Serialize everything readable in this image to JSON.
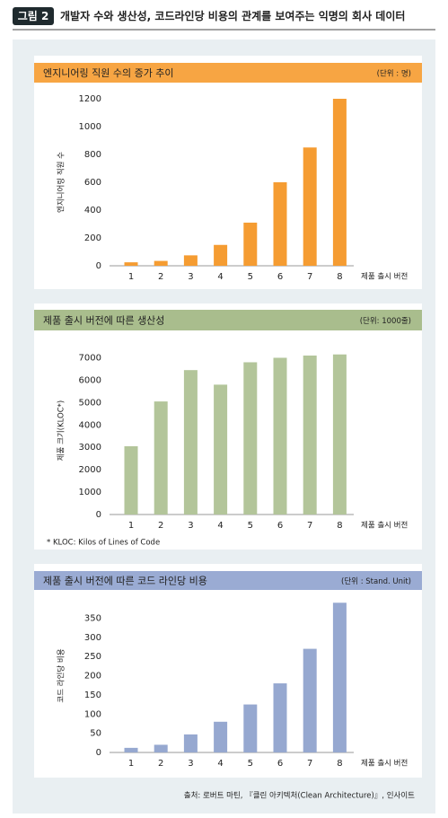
{
  "header": {
    "badge": "그림 2",
    "title": "개발자 수와 생산성, 코드라인당 비용의 관계를 보여주는 익명의 회사 데이터"
  },
  "chart_data": [
    {
      "type": "bar",
      "title": "엔지니어링 직원 수의 증가 추이",
      "unit": "(단위 : 명)",
      "y_label": "엔지니어링 직원 수",
      "x_label": "제품 출시 버전",
      "categories": [
        "1",
        "2",
        "3",
        "4",
        "5",
        "6",
        "7",
        "8"
      ],
      "values": [
        25,
        35,
        75,
        150,
        310,
        600,
        850,
        1200
      ],
      "color": "#f59c32",
      "header_color": "#f7a543",
      "ylim": [
        0,
        1200
      ],
      "yticks": [
        0,
        200,
        400,
        600,
        800,
        1000,
        1200
      ]
    },
    {
      "type": "bar",
      "title": "제품 출시 버전에 따른 생산성",
      "unit": "(단위: 1000줄)",
      "y_label": "제품 크기(KLOC*)",
      "x_label": "제품 출시 버전",
      "categories": [
        "1",
        "2",
        "3",
        "4",
        "5",
        "6",
        "7",
        "8"
      ],
      "values": [
        3050,
        5050,
        6450,
        5800,
        6800,
        7000,
        7100,
        7150
      ],
      "color": "#b3c59a",
      "header_color": "#a9bd8d",
      "ylim": [
        0,
        7500
      ],
      "yticks": [
        0,
        1000,
        2000,
        3000,
        4000,
        5000,
        6000,
        7000
      ],
      "note": "* KLOC: Kilos of Lines of Code"
    },
    {
      "type": "bar",
      "title": "제품 출시 버전에 따른 코드 라인당 비용",
      "unit": "(단위 : Stand. Unit)",
      "y_label": "코드 라인당 비용",
      "x_label": "제품 출시 버전",
      "categories": [
        "1",
        "2",
        "3",
        "4",
        "5",
        "6",
        "7",
        "8"
      ],
      "values": [
        12,
        20,
        47,
        80,
        125,
        180,
        270,
        390
      ],
      "color": "#96a8d0",
      "header_color": "#9aabd3",
      "ylim": [
        0,
        400
      ],
      "yticks": [
        0,
        50,
        100,
        150,
        200,
        250,
        300,
        350
      ]
    }
  ],
  "source": "출처: 로버트 마틴, 『클린 아키텍처(Clean Architecture)』, 인사이트"
}
